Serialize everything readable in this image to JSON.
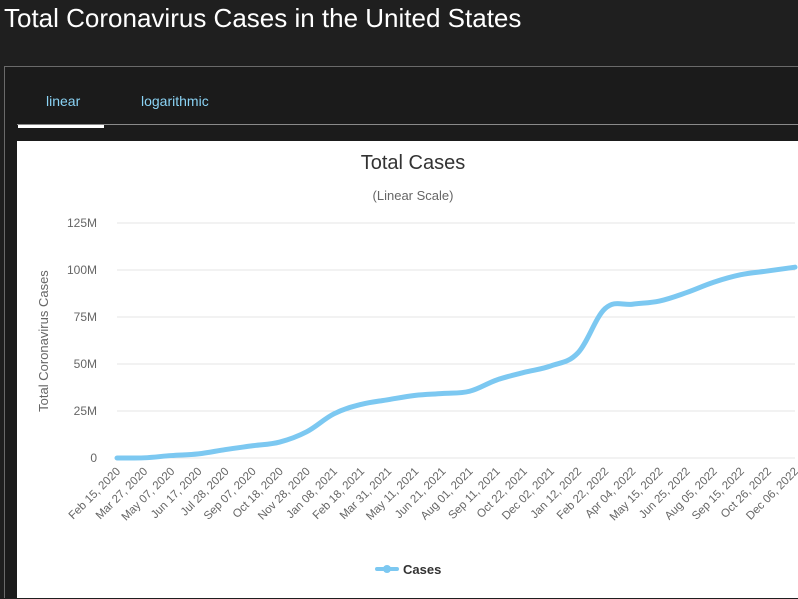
{
  "page": {
    "title": "Total Coronavirus Cases in the United States"
  },
  "tabs": [
    {
      "label": "linear",
      "active": true
    },
    {
      "label": "logarithmic",
      "active": false
    }
  ],
  "chart_data": {
    "type": "line",
    "title": "Total Cases",
    "subtitle": "(Linear Scale)",
    "ylabel": "Total Coronavirus Cases",
    "xlabel": "",
    "ylim": [
      0,
      125000000
    ],
    "yticks": [
      {
        "value": 0,
        "label": "0"
      },
      {
        "value": 25000000,
        "label": "25M"
      },
      {
        "value": 50000000,
        "label": "50M"
      },
      {
        "value": 75000000,
        "label": "75M"
      },
      {
        "value": 100000000,
        "label": "100M"
      },
      {
        "value": 125000000,
        "label": "125M"
      }
    ],
    "categories": [
      "Feb 15, 2020",
      "Mar 27, 2020",
      "May 07, 2020",
      "Jun 17, 2020",
      "Jul 28, 2020",
      "Sep 07, 2020",
      "Oct 18, 2020",
      "Nov 28, 2020",
      "Jan 08, 2021",
      "Feb 18, 2021",
      "Mar 31, 2021",
      "May 11, 2021",
      "Jun 21, 2021",
      "Aug 01, 2021",
      "Sep 11, 2021",
      "Oct 22, 2021",
      "Dec 02, 2021",
      "Jan 12, 2022",
      "Feb 22, 2022",
      "Apr 04, 2022",
      "May 15, 2022",
      "Jun 25, 2022",
      "Aug 05, 2022",
      "Sep 15, 2022",
      "Oct 26, 2022",
      "Dec 06, 2022"
    ],
    "series": [
      {
        "name": "Cases",
        "color": "#7cc8f1",
        "values": [
          0,
          100000,
          1300000,
          2200000,
          4500000,
          6500000,
          8500000,
          14000000,
          23500000,
          28500000,
          31000000,
          33300000,
          34300000,
          35500000,
          41500000,
          45500000,
          49000000,
          56000000,
          79500000,
          81800000,
          83500000,
          88000000,
          93500000,
          97500000,
          99500000,
          101500000
        ]
      }
    ],
    "legend": {
      "position": "bottom-center"
    },
    "grid": {
      "y": true,
      "x": false
    },
    "colors": {
      "grid": "#e6e6e6",
      "axis_text": "#666666",
      "title": "#333333"
    }
  }
}
